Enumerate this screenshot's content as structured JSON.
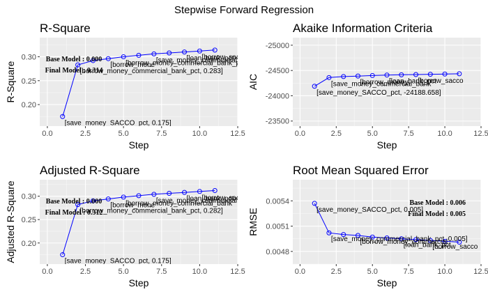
{
  "title": "Stepwise Forward Regression",
  "chart_data": [
    {
      "type": "line",
      "title": "R-Square",
      "xlabel": "Step",
      "ylabel": "R-Square",
      "xlim": [
        -0.5,
        12.5
      ],
      "ylim": [
        0.155,
        0.34
      ],
      "reverse_y": false,
      "xticks": [
        0,
        2.5,
        5,
        7.5,
        10,
        12.5
      ],
      "xtick_labels": [
        "0.0",
        "2.5",
        "5.0",
        "7.5",
        "10.0",
        "12.5"
      ],
      "yticks": [
        0.2,
        0.25,
        0.3
      ],
      "ytick_labels": [
        "0.20",
        "0.25",
        "0.30"
      ],
      "x": [
        1,
        2,
        3,
        4,
        5,
        6,
        7,
        8,
        9,
        10,
        11
      ],
      "y": [
        0.175,
        0.283,
        0.292,
        0.296,
        0.3,
        0.303,
        0.306,
        0.308,
        0.31,
        0.312,
        0.314
      ],
      "point_labels": [
        {
          "i": 0,
          "text": "[save_money_SACCO_pct, 0.175]"
        },
        {
          "i": 1,
          "text": "[borrow_money_commercial_bank_pct, 0.283]"
        },
        {
          "i": 3,
          "text": "[borrow_mone"
        },
        {
          "i": 4,
          "text": "[borrow_money_commercial_bank_pct"
        },
        {
          "i": 6,
          "text": "[save_money_commercial_bank"
        },
        {
          "i": 8,
          "text": "[loan_bank_pct"
        },
        {
          "i": 9,
          "text": "[borrow_sacco"
        }
      ],
      "model_labels": [
        {
          "text": "Base Model : 0.000",
          "pos": "top-left"
        },
        {
          "text": "Final Model : 0.314",
          "pos": "left"
        }
      ]
    },
    {
      "type": "line",
      "title": "Akaike Information Criteria",
      "xlabel": "Step",
      "ylabel": "AIC",
      "xlim": [
        -0.5,
        12.5
      ],
      "ylim": [
        -23400,
        -25150
      ],
      "reverse_y": true,
      "xticks": [
        0,
        2.5,
        5,
        7.5,
        10,
        12.5
      ],
      "xtick_labels": [
        "0.0",
        "2.5",
        "5.0",
        "7.5",
        "10.0",
        "12.5"
      ],
      "yticks": [
        -25000,
        -24500,
        -24000,
        -23500
      ],
      "ytick_labels": [
        "-25000",
        "-24500",
        "-24000",
        "-23500"
      ],
      "x": [
        1,
        2,
        3,
        4,
        5,
        6,
        7,
        8,
        9,
        10,
        11
      ],
      "y": [
        -24188.658,
        -24360,
        -24380,
        -24390,
        -24400,
        -24410,
        -24415,
        -24420,
        -24425,
        -24430,
        -24435
      ],
      "point_labels": [
        {
          "i": 0,
          "text": "[save_money_SACCO_pct, -24188.658]"
        },
        {
          "i": 1,
          "text": "[save_money_commercial_bank"
        },
        {
          "i": 3,
          "text": "[borrow_money"
        },
        {
          "i": 5,
          "text": "[loan_bank_pct"
        },
        {
          "i": 7,
          "text": "[borrow_sacco"
        }
      ],
      "model_labels": []
    },
    {
      "type": "line",
      "title": "Adjusted R-Square",
      "xlabel": "Step",
      "ylabel": "Adjusted R-Square",
      "xlim": [
        -0.5,
        12.5
      ],
      "ylim": [
        0.155,
        0.335
      ],
      "reverse_y": false,
      "xticks": [
        0,
        2.5,
        5,
        7.5,
        10,
        12.5
      ],
      "xtick_labels": [
        "0.0",
        "2.5",
        "5.0",
        "7.5",
        "10.0",
        "12.5"
      ],
      "yticks": [
        0.2,
        0.25,
        0.3
      ],
      "ytick_labels": [
        "0.20",
        "0.25",
        "0.30"
      ],
      "x": [
        1,
        2,
        3,
        4,
        5,
        6,
        7,
        8,
        9,
        10,
        11
      ],
      "y": [
        0.175,
        0.282,
        0.29,
        0.294,
        0.298,
        0.301,
        0.304,
        0.306,
        0.308,
        0.31,
        0.312
      ],
      "point_labels": [
        {
          "i": 0,
          "text": "[save_money_SACCO_pct, 0.175]"
        },
        {
          "i": 1,
          "text": "[borrow_money_commercial_bank_pct, 0.282]"
        },
        {
          "i": 3,
          "text": "[borrow_mone"
        },
        {
          "i": 4,
          "text": "[borrow_money_commercial_bank"
        },
        {
          "i": 6,
          "text": "[save_money_commercial"
        },
        {
          "i": 8,
          "text": "[loan_bank_pct"
        },
        {
          "i": 9,
          "text": "[borrow_sacco"
        }
      ],
      "model_labels": [
        {
          "text": "Base Model : 0.000",
          "pos": "top-left"
        },
        {
          "text": "Final Model : 0.312",
          "pos": "left"
        }
      ]
    },
    {
      "type": "line",
      "title": "Root Mean Squared Error",
      "xlabel": "Step",
      "ylabel": "RMSE",
      "xlim": [
        -0.5,
        12.5
      ],
      "ylim": [
        0.00465,
        0.00565
      ],
      "reverse_y": false,
      "xticks": [
        0,
        2.5,
        5,
        7.5,
        10,
        12.5
      ],
      "xtick_labels": [
        "0.0",
        "2.5",
        "5.0",
        "7.5",
        "10.0",
        "12.5"
      ],
      "yticks": [
        0.0048,
        0.0051,
        0.0054
      ],
      "ytick_labels": [
        "0.0048",
        "0.0051",
        "0.0054"
      ],
      "x": [
        1,
        2,
        3,
        4,
        5,
        6,
        7,
        8,
        9,
        10,
        11
      ],
      "y": [
        0.00537,
        0.00502,
        0.005,
        0.00499,
        0.00497,
        0.00496,
        0.00495,
        0.00494,
        0.00493,
        0.00492,
        0.00491
      ],
      "point_labels": [
        {
          "i": 0,
          "text": "[save_money_SACCO_pct, 0.005]"
        },
        {
          "i": 1,
          "text": "[save_money_commercial_bank_pct, 0.005]"
        },
        {
          "i": 3,
          "text": "[borrow_money_commercial"
        },
        {
          "i": 6,
          "text": "[loan_bank_pct"
        },
        {
          "i": 8,
          "text": "[borrow_sacco"
        }
      ],
      "model_labels": [
        {
          "text": "Base Model : 0.006",
          "pos": "top-right"
        },
        {
          "text": "Final Model : 0.005",
          "pos": "right"
        }
      ]
    }
  ]
}
